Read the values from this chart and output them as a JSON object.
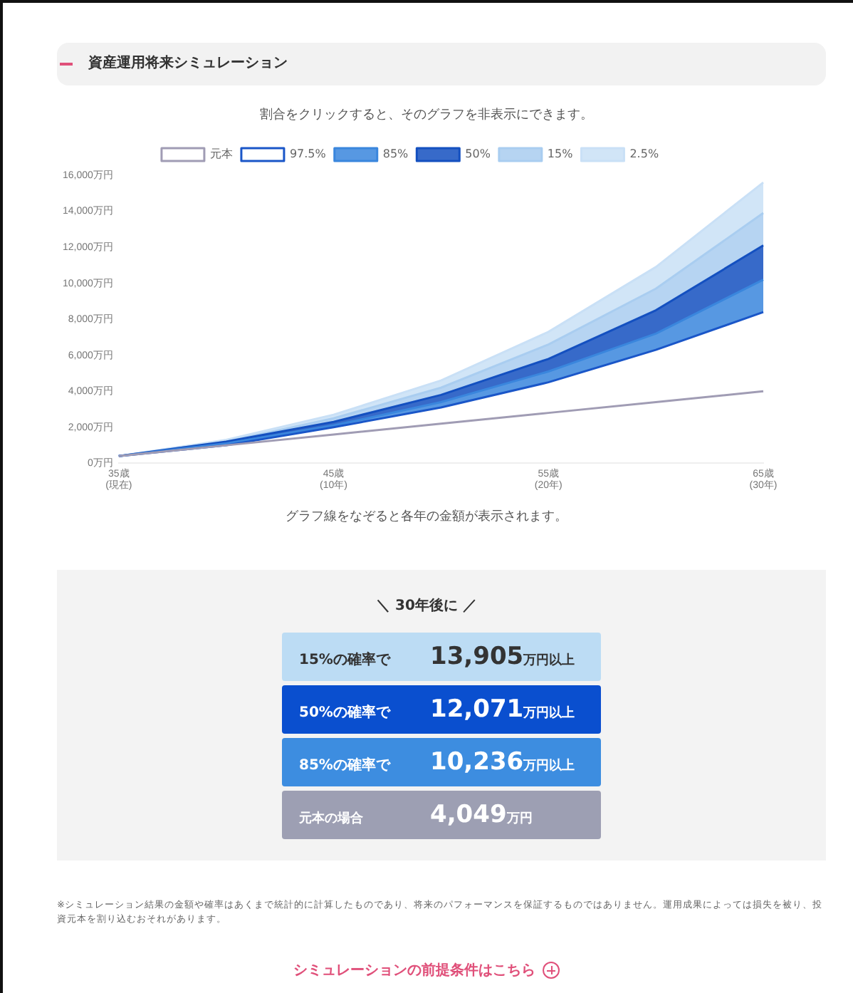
{
  "chart_data": {
    "type": "area",
    "title": "資産運用将来シミュレーション",
    "subtitle": "割合をクリックすると、そのグラフを非表示にできます。",
    "categories": [
      "35歳\n(現在)",
      null,
      "45歳\n(10年)",
      null,
      "55歳\n(20年)",
      null,
      "65歳\n(30年)"
    ],
    "ylim": [
      0,
      16000
    ],
    "yticks": [
      {
        "value": 0,
        "label": "0万円"
      },
      {
        "value": 2000,
        "label": "2,000万円"
      },
      {
        "value": 4000,
        "label": "4,000万円"
      },
      {
        "value": 6000,
        "label": "6,000万円"
      },
      {
        "value": 8000,
        "label": "8,000万円"
      },
      {
        "value": 10000,
        "label": "10,000万円"
      },
      {
        "value": 12000,
        "label": "12,000万円"
      },
      {
        "value": 14000,
        "label": "14,000万円"
      },
      {
        "value": 16000,
        "label": "16,000万円"
      }
    ],
    "series": [
      {
        "name": "元本",
        "type": "line",
        "color": "#a09cb4",
        "values": [
          400,
          1000,
          1600,
          2200,
          2800,
          3400,
          4000
        ]
      },
      {
        "name": "97.5%",
        "type": "line",
        "color": "#1a56c8",
        "values": [
          400,
          1000,
          2000,
          3100,
          4500,
          6300,
          8400
        ]
      },
      {
        "name": "85%",
        "type": "area",
        "color": "#3a86dd",
        "values": [
          400,
          1100,
          2100,
          3400,
          5100,
          7200,
          10200
        ]
      },
      {
        "name": "50%",
        "type": "area",
        "color": "#1450c0",
        "values": [
          400,
          1200,
          2300,
          3800,
          5800,
          8500,
          12100
        ]
      },
      {
        "name": "15%",
        "type": "area",
        "color": "#a9cdf0",
        "values": [
          400,
          1200,
          2500,
          4200,
          6600,
          9700,
          13900
        ]
      },
      {
        "name": "2.5%",
        "type": "area",
        "color": "#c9e0f6",
        "values": [
          400,
          1300,
          2700,
          4600,
          7300,
          10900,
          15600
        ]
      }
    ],
    "grid": false,
    "legend": "top",
    "marker": "none",
    "line_style": "solid",
    "annotations": [
      "グラフ線をなぞると各年の金額が表示されます。",
      "＼ 30年後に ／",
      "15%の確率で",
      "13,905",
      "万円以上",
      "50%の確率で",
      "12,071",
      "万円以上",
      "85%の確率で",
      "10,236",
      "万円以上",
      "元本の場合",
      "4,049",
      "万円",
      "※シミュレーション結果の金額や確率はあくまで統計的に計算したものであり、将来のパフォーマンスを保証するものではありません。運用成果によっては損失を被り、投資元本を割り込むおそれがあります。",
      "シミュレーションの前提条件はこちら"
    ]
  }
}
